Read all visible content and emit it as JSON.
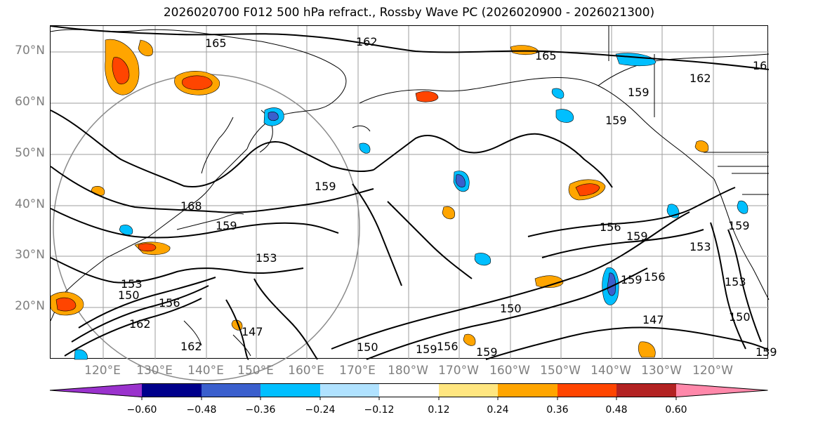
{
  "title": "2026020700 F012 500 hPa refract., Rossby Wave PC (2026020900 - 2026021300)",
  "lat_labels": [
    "70°N",
    "60°N",
    "50°N",
    "40°N",
    "30°N",
    "20°N"
  ],
  "lon_labels": [
    "120°E",
    "130°E",
    "140°E",
    "150°E",
    "160°E",
    "170°E",
    "180°W",
    "170°W",
    "160°W",
    "150°W",
    "140°W",
    "130°W",
    "120°W"
  ],
  "colorbar": {
    "colors": [
      "#9a32cd",
      "#00008b",
      "#3a5fcd",
      "#00bfff",
      "#b0e2ff",
      "#ffffff",
      "#ffe680",
      "#ffa500",
      "#ff4500",
      "#b22222",
      "#ff88aa"
    ],
    "labels": [
      "−0.60",
      "−0.48",
      "−0.36",
      "−0.24",
      "−0.12",
      "0.12",
      "0.24",
      "0.36",
      "0.48",
      "0.60"
    ]
  },
  "contour_labels": [
    "165",
    "162",
    "165",
    "16",
    "162",
    "159",
    "159",
    "159",
    "156",
    "159",
    "153",
    "156",
    "159",
    "150",
    "153",
    "162",
    "147",
    "150",
    "159",
    "156",
    "159",
    "150",
    "147",
    "153",
    "159",
    "159",
    "168",
    "150",
    "162",
    "153",
    "159",
    "156"
  ]
}
